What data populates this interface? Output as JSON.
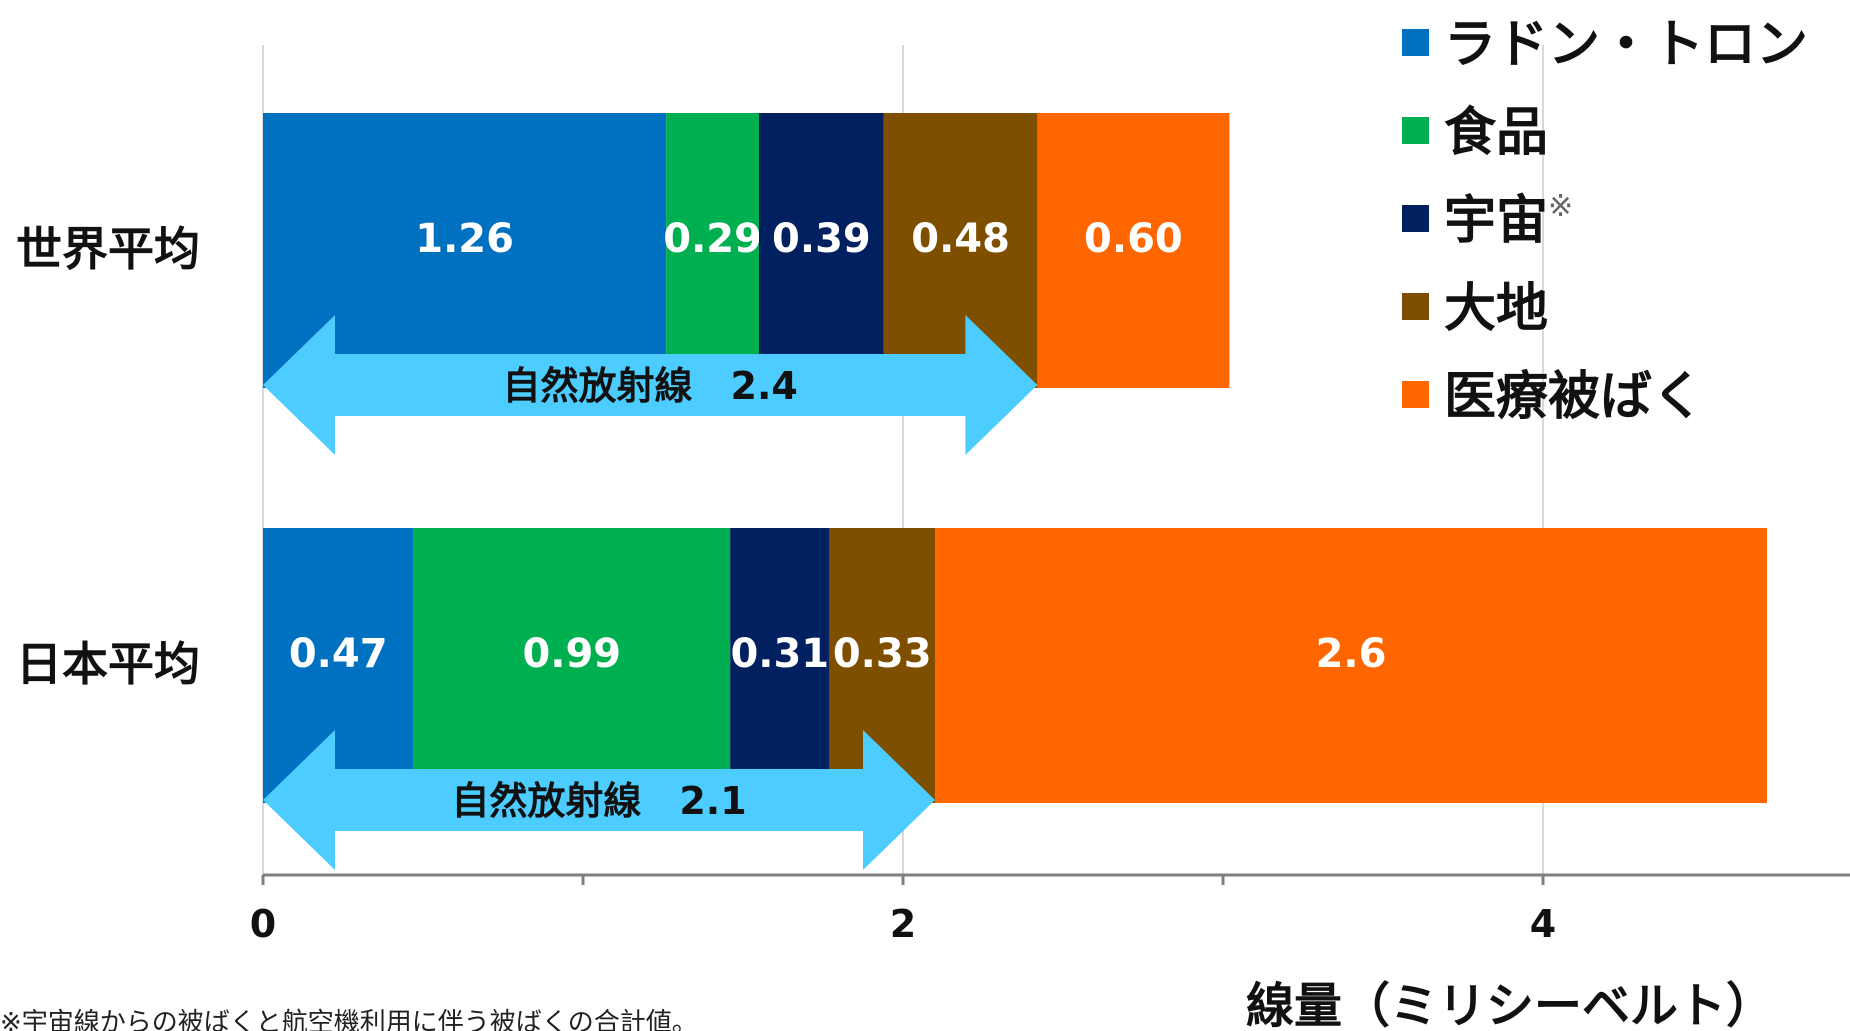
{
  "chart_data": {
    "type": "bar",
    "orientation": "horizontal",
    "stacked": true,
    "categories": [
      "世界平均",
      "日本平均"
    ],
    "series": [
      {
        "name": "ラドン・トロン",
        "values": [
          1.26,
          0.47
        ],
        "labels": [
          "1.26",
          "0.47"
        ],
        "color": "#0070C0"
      },
      {
        "name": "食品",
        "values": [
          0.29,
          0.99
        ],
        "labels": [
          "0.29",
          "0.99"
        ],
        "color": "#00B050"
      },
      {
        "name": "宇宙",
        "values": [
          0.39,
          0.31
        ],
        "labels": [
          "0.39",
          "0.31"
        ],
        "color": "#002060"
      },
      {
        "name": "大地",
        "values": [
          0.48,
          0.33
        ],
        "labels": [
          "0.48",
          "0.33"
        ],
        "color": "#7F4F00"
      },
      {
        "name": "医療被ばく",
        "values": [
          0.6,
          2.6
        ],
        "labels": [
          "0.60",
          "2.6"
        ],
        "color": "#FF6600"
      }
    ],
    "legend_superscripts": [
      "",
      "",
      "※",
      "",
      ""
    ],
    "legend_position": "top-right",
    "annotations": [
      {
        "category": "世界平均",
        "text": "自然放射線　2.4",
        "from": 0,
        "to": 2.42,
        "color": "#4DCCFF"
      },
      {
        "category": "日本平均",
        "text": "自然放射線　2.1",
        "from": 0,
        "to": 2.1,
        "color": "#4DCCFF"
      }
    ],
    "xaxis": {
      "ticks": [
        0,
        2,
        4
      ],
      "tick_labels": [
        "0",
        "2",
        "4"
      ],
      "minor_ticks": [
        1,
        3
      ],
      "range": [
        0,
        4.9
      ]
    },
    "xlabel": "線量（ミリシーベルト）",
    "ylabel": "",
    "grid": true,
    "footnote": "※宇宙線からの被ばくと航空機利用に伴う被ばくの合計値。"
  }
}
